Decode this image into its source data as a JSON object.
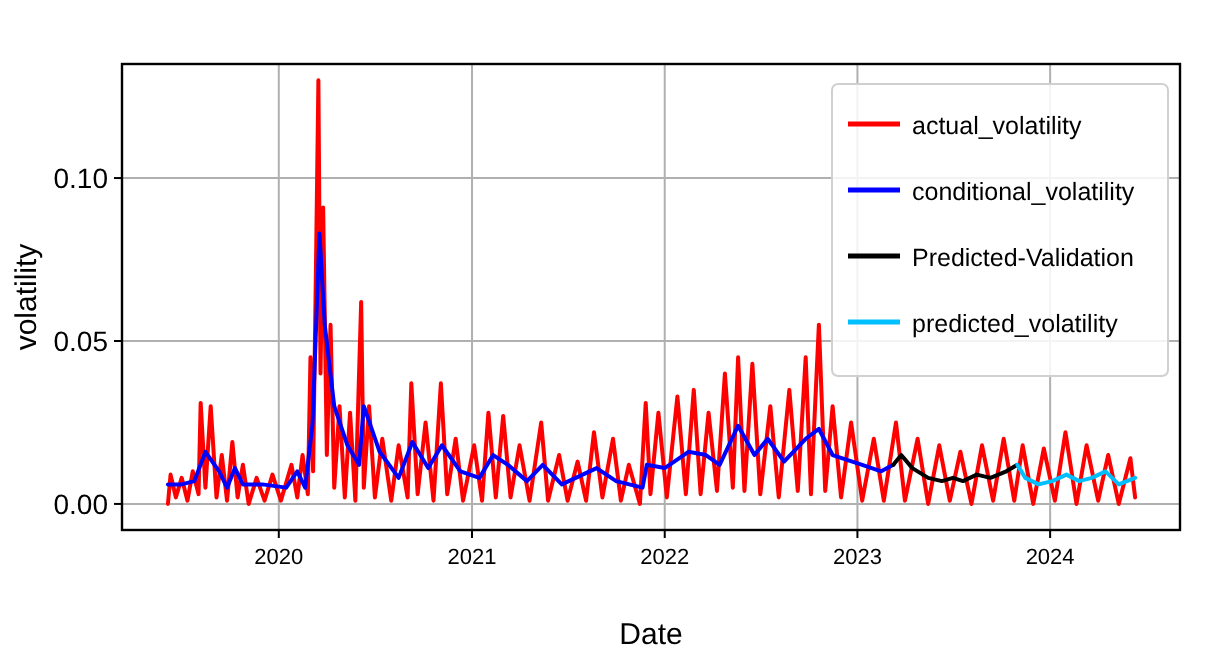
{
  "chart_data": {
    "type": "line",
    "xlabel": "Date",
    "ylabel": "volatility",
    "xlim": [
      "2019-03-10",
      "2024-09-03"
    ],
    "xticks": [
      "2020",
      "2021",
      "2022",
      "2023",
      "2024"
    ],
    "ylim": [
      -0.008,
      0.135
    ],
    "yticks": [
      {
        "value": 0,
        "label": "0.00"
      },
      {
        "value": 0.05,
        "label": "0.05"
      },
      {
        "value": 0.1,
        "label": "0.10"
      }
    ],
    "grid": true,
    "legend": "top right",
    "line_style": "solid",
    "series": [
      {
        "name": "actual_volatility",
        "color": "#ff0000",
        "x": [
          "2019-06-05",
          "2019-06-10",
          "2019-06-20",
          "2019-07-01",
          "2019-07-12",
          "2019-07-22",
          "2019-08-02",
          "2019-08-06",
          "2019-08-15",
          "2019-08-25",
          "2019-09-05",
          "2019-09-15",
          "2019-09-25",
          "2019-10-05",
          "2019-10-15",
          "2019-10-25",
          "2019-11-05",
          "2019-11-20",
          "2019-12-05",
          "2019-12-20",
          "2020-01-05",
          "2020-01-25",
          "2020-02-05",
          "2020-02-15",
          "2020-02-25",
          "2020-03-01",
          "2020-03-06",
          "2020-03-12",
          "2020-03-16",
          "2020-03-20",
          "2020-03-25",
          "2020-04-01",
          "2020-04-08",
          "2020-04-15",
          "2020-04-25",
          "2020-05-05",
          "2020-05-15",
          "2020-05-25",
          "2020-06-05",
          "2020-06-10",
          "2020-06-20",
          "2020-07-01",
          "2020-07-15",
          "2020-08-01",
          "2020-08-15",
          "2020-09-01",
          "2020-09-08",
          "2020-09-20",
          "2020-10-05",
          "2020-10-20",
          "2020-11-03",
          "2020-11-15",
          "2020-12-01",
          "2020-12-15",
          "2021-01-05",
          "2021-01-20",
          "2021-02-01",
          "2021-02-15",
          "2021-03-01",
          "2021-03-15",
          "2021-04-01",
          "2021-04-20",
          "2021-05-12",
          "2021-05-25",
          "2021-06-15",
          "2021-07-01",
          "2021-07-20",
          "2021-08-05",
          "2021-08-20",
          "2021-09-05",
          "2021-09-25",
          "2021-10-10",
          "2021-10-25",
          "2021-11-15",
          "2021-11-26",
          "2021-12-05",
          "2021-12-20",
          "2022-01-05",
          "2022-01-25",
          "2022-02-10",
          "2022-02-25",
          "2022-03-10",
          "2022-03-25",
          "2022-04-10",
          "2022-04-25",
          "2022-05-10",
          "2022-05-20",
          "2022-06-01",
          "2022-06-16",
          "2022-07-01",
          "2022-07-20",
          "2022-08-05",
          "2022-08-25",
          "2022-09-10",
          "2022-09-25",
          "2022-10-05",
          "2022-10-20",
          "2022-11-01",
          "2022-11-15",
          "2022-12-01",
          "2022-12-20",
          "2023-01-10",
          "2023-02-01",
          "2023-02-20",
          "2023-03-15",
          "2023-04-01",
          "2023-04-25",
          "2023-05-15",
          "2023-06-05",
          "2023-06-25",
          "2023-07-15",
          "2023-08-05",
          "2023-08-25",
          "2023-09-15",
          "2023-10-05",
          "2023-10-25",
          "2023-11-10",
          "2023-11-30",
          "2023-12-20",
          "2024-01-10",
          "2024-01-30",
          "2024-02-20",
          "2024-03-10",
          "2024-04-01",
          "2024-04-20",
          "2024-05-10",
          "2024-06-01",
          "2024-06-10"
        ],
        "values": [
          0.0,
          0.009,
          0.002,
          0.008,
          0.001,
          0.01,
          0.003,
          0.031,
          0.005,
          0.03,
          0.002,
          0.015,
          0.001,
          0.019,
          0.002,
          0.012,
          0.0,
          0.008,
          0.001,
          0.009,
          0.001,
          0.012,
          0.002,
          0.015,
          0.003,
          0.045,
          0.01,
          0.08,
          0.13,
          0.04,
          0.091,
          0.015,
          0.055,
          0.005,
          0.03,
          0.002,
          0.028,
          0.001,
          0.062,
          0.005,
          0.03,
          0.002,
          0.02,
          0.001,
          0.018,
          0.002,
          0.037,
          0.003,
          0.025,
          0.001,
          0.037,
          0.003,
          0.02,
          0.001,
          0.018,
          0.001,
          0.028,
          0.002,
          0.027,
          0.002,
          0.018,
          0.001,
          0.025,
          0.001,
          0.015,
          0.001,
          0.013,
          0.001,
          0.022,
          0.002,
          0.02,
          0.001,
          0.012,
          0.0,
          0.031,
          0.003,
          0.028,
          0.002,
          0.033,
          0.003,
          0.035,
          0.003,
          0.028,
          0.004,
          0.04,
          0.005,
          0.045,
          0.004,
          0.043,
          0.003,
          0.03,
          0.002,
          0.035,
          0.004,
          0.045,
          0.003,
          0.055,
          0.004,
          0.03,
          0.002,
          0.025,
          0.001,
          0.02,
          0.001,
          0.025,
          0.001,
          0.02,
          0.0,
          0.018,
          0.001,
          0.016,
          0.0,
          0.018,
          0.001,
          0.02,
          0.001,
          0.018,
          0.0,
          0.017,
          0.001,
          0.022,
          0.0,
          0.018,
          0.001,
          0.015,
          0.0,
          0.014,
          0.002
        ]
      },
      {
        "name": "conditional_volatility",
        "color": "#0000ff",
        "x": [
          "2019-06-05",
          "2019-07-01",
          "2019-07-25",
          "2019-08-15",
          "2019-09-10",
          "2019-09-25",
          "2019-10-10",
          "2019-10-25",
          "2019-12-01",
          "2020-01-15",
          "2020-02-05",
          "2020-02-20",
          "2020-03-05",
          "2020-03-18",
          "2020-03-28",
          "2020-04-15",
          "2020-05-10",
          "2020-06-01",
          "2020-06-10",
          "2020-07-10",
          "2020-08-15",
          "2020-09-10",
          "2020-10-10",
          "2020-11-05",
          "2020-12-10",
          "2021-01-15",
          "2021-02-10",
          "2021-03-10",
          "2021-04-15",
          "2021-05-15",
          "2021-06-20",
          "2021-08-25",
          "2021-10-01",
          "2021-11-20",
          "2021-11-28",
          "2022-01-01",
          "2022-02-15",
          "2022-03-20",
          "2022-04-15",
          "2022-05-20",
          "2022-06-20",
          "2022-07-15",
          "2022-08-15",
          "2022-09-25",
          "2022-10-20",
          "2022-11-15",
          "2023-01-10",
          "2023-02-15",
          "2023-03-10"
        ],
        "values": [
          0.006,
          0.006,
          0.007,
          0.016,
          0.01,
          0.005,
          0.011,
          0.006,
          0.006,
          0.005,
          0.01,
          0.005,
          0.025,
          0.083,
          0.055,
          0.03,
          0.018,
          0.012,
          0.03,
          0.016,
          0.008,
          0.019,
          0.011,
          0.018,
          0.01,
          0.008,
          0.015,
          0.012,
          0.007,
          0.012,
          0.006,
          0.011,
          0.007,
          0.005,
          0.012,
          0.011,
          0.016,
          0.015,
          0.012,
          0.024,
          0.015,
          0.02,
          0.013,
          0.02,
          0.023,
          0.015,
          0.012,
          0.01,
          0.012
        ]
      },
      {
        "name": "Predicted-Validation",
        "color": "#000000",
        "x": [
          "2023-03-10",
          "2023-03-25",
          "2023-04-15",
          "2023-05-15",
          "2023-06-10",
          "2023-07-01",
          "2023-07-20",
          "2023-08-15",
          "2023-09-10",
          "2023-10-10",
          "2023-10-31"
        ],
        "values": [
          0.012,
          0.015,
          0.011,
          0.008,
          0.007,
          0.008,
          0.007,
          0.009,
          0.008,
          0.01,
          0.012
        ]
      },
      {
        "name": "predicted_volatility",
        "color": "#00bfff",
        "x": [
          "2023-10-31",
          "2023-11-15",
          "2023-12-10",
          "2024-01-05",
          "2024-02-01",
          "2024-02-25",
          "2024-03-20",
          "2024-04-15",
          "2024-05-10",
          "2024-06-10"
        ],
        "values": [
          0.012,
          0.008,
          0.006,
          0.007,
          0.009,
          0.007,
          0.008,
          0.01,
          0.006,
          0.008
        ]
      }
    ]
  }
}
